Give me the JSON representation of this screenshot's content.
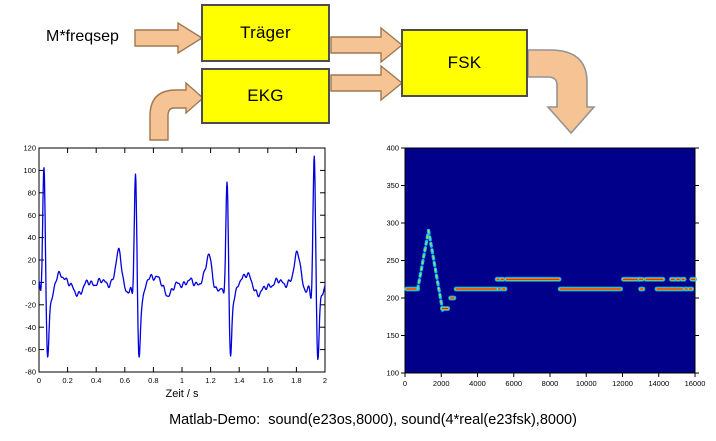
{
  "diagram": {
    "input_label": "M*freqsep",
    "blocks": [
      {
        "id": "traeger",
        "label": "Träger"
      },
      {
        "id": "ekg",
        "label": "EKG"
      },
      {
        "id": "fsk",
        "label": "FSK"
      }
    ],
    "colors": {
      "block_fill": "#FFFF00",
      "block_border": "#4d4d4d",
      "arrow_fill": "#F6C494",
      "arrow_stroke": "#A07850",
      "output_arrow_stroke": "#949494"
    }
  },
  "caption": "Matlab-Demo:  sound(e23os,8000), sound(4*real(e23fsk),8000)",
  "chart_data": [
    {
      "id": "ekg_time_signal",
      "type": "line",
      "title": "",
      "xlabel": "Zeit / s",
      "ylabel": "",
      "xlim": [
        0,
        2
      ],
      "ylim": [
        -80,
        120
      ],
      "xtick_labels": [
        "0",
        "0.2",
        "0.4",
        "0.6",
        "0.8",
        "1",
        "1.2",
        "1.4",
        "1.6",
        "1.8",
        "2"
      ],
      "ytick_labels": [
        "-80",
        "-60",
        "-40",
        "-20",
        "0",
        "20",
        "40",
        "60",
        "80",
        "100",
        "120"
      ],
      "grid": false,
      "line_color": "#0000E0",
      "beats": [
        {
          "t": 0.035,
          "r_amp": 104
        },
        {
          "t": 0.675,
          "r_amp": 101
        },
        {
          "t": 1.315,
          "r_amp": 96
        },
        {
          "t": 1.925,
          "r_amp": 118
        }
      ],
      "p_waves": [
        {
          "t": 0.56,
          "amp": 28
        },
        {
          "t": 1.19,
          "amp": 26
        },
        {
          "t": 1.81,
          "amp": 29
        }
      ],
      "q_depth": -12,
      "s_depth": -62,
      "baseline": 0
    },
    {
      "id": "fsk_instantaneous_frequency",
      "type": "line",
      "title": "",
      "xlabel": "",
      "ylabel": "",
      "xlim": [
        0,
        16000
      ],
      "ylim": [
        100,
        400
      ],
      "xtick_labels": [
        "0",
        "2000",
        "4000",
        "6000",
        "8000",
        "10000",
        "12000",
        "14000",
        "16000"
      ],
      "ytick_labels": [
        "100",
        "150",
        "200",
        "250",
        "300",
        "350",
        "400"
      ],
      "grid": false,
      "bg_color": "#00008B",
      "palette": {
        "core": "#D42A00",
        "mid": "#FFC800",
        "glow": "#00C8FF"
      },
      "segments": [
        [
          100,
          212,
          700,
          212,
          "solid"
        ],
        [
          700,
          212,
          1300,
          290,
          "dash"
        ],
        [
          1300,
          290,
          2080,
          183,
          "dash"
        ],
        [
          2060,
          186,
          2360,
          186,
          "solid"
        ],
        [
          2520,
          200,
          2700,
          200,
          "solid"
        ],
        [
          2820,
          212,
          5050,
          212,
          "solid"
        ],
        [
          5080,
          225,
          5180,
          225,
          "solid"
        ],
        [
          5160,
          212,
          5260,
          212,
          "solid"
        ],
        [
          5300,
          225,
          5420,
          225,
          "solid"
        ],
        [
          5400,
          212,
          5520,
          212,
          "solid"
        ],
        [
          5600,
          225,
          8500,
          225,
          "solid"
        ],
        [
          8560,
          212,
          11900,
          212,
          "solid"
        ],
        [
          12050,
          225,
          12900,
          225,
          "solid"
        ],
        [
          12950,
          225,
          13100,
          225,
          "solid"
        ],
        [
          13000,
          212,
          13130,
          212,
          "solid"
        ],
        [
          13300,
          225,
          14230,
          225,
          "solid"
        ],
        [
          13900,
          212,
          15300,
          212,
          "solid"
        ],
        [
          14700,
          225,
          14850,
          225,
          "solid"
        ],
        [
          15000,
          225,
          15120,
          225,
          "solid"
        ],
        [
          15280,
          225,
          15400,
          225,
          "solid"
        ],
        [
          15450,
          212,
          15560,
          212,
          "solid"
        ],
        [
          15700,
          212,
          15820,
          212,
          "solid"
        ],
        [
          15820,
          225,
          15980,
          225,
          "solid"
        ]
      ]
    }
  ]
}
